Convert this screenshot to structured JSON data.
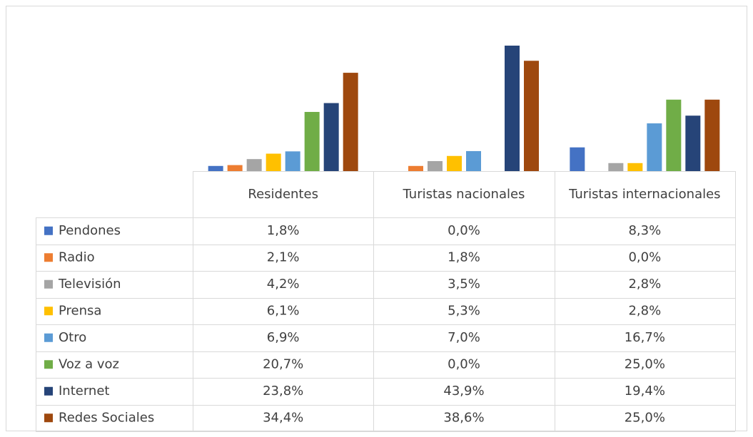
{
  "chart_data": {
    "type": "bar",
    "categories": [
      "Residentes",
      "Turistas nacionales",
      "Turistas internacionales"
    ],
    "series": [
      {
        "name": "Pendones",
        "color": "#4472c4",
        "values": [
          1.8,
          0.0,
          8.3
        ],
        "value_labels": [
          "1,8%",
          "0,0%",
          "8,3%"
        ]
      },
      {
        "name": "Radio",
        "color": "#ed7d31",
        "values": [
          2.1,
          1.8,
          0.0
        ],
        "value_labels": [
          "2,1%",
          "1,8%",
          "0,0%"
        ]
      },
      {
        "name": "Televisión",
        "color": "#a5a5a5",
        "values": [
          4.2,
          3.5,
          2.8
        ],
        "value_labels": [
          "4,2%",
          "3,5%",
          "2,8%"
        ]
      },
      {
        "name": "Prensa",
        "color": "#ffc000",
        "values": [
          6.1,
          5.3,
          2.8
        ],
        "value_labels": [
          "6,1%",
          "5,3%",
          "2,8%"
        ]
      },
      {
        "name": "Otro",
        "color": "#5b9bd5",
        "values": [
          6.9,
          7.0,
          16.7
        ],
        "value_labels": [
          "6,9%",
          "7,0%",
          "16,7%"
        ]
      },
      {
        "name": "Voz a voz",
        "color": "#70ad47",
        "values": [
          20.7,
          0.0,
          25.0
        ],
        "value_labels": [
          "20,7%",
          "0,0%",
          "25,0%"
        ]
      },
      {
        "name": "Internet",
        "color": "#264478",
        "values": [
          23.8,
          43.9,
          19.4
        ],
        "value_labels": [
          "23,8%",
          "43,9%",
          "19,4%"
        ]
      },
      {
        "name": "Redes Sociales",
        "color": "#9e480e",
        "values": [
          34.4,
          38.6,
          25.0
        ],
        "value_labels": [
          "34,4%",
          "38,6%",
          "25,0%"
        ]
      }
    ]
  }
}
